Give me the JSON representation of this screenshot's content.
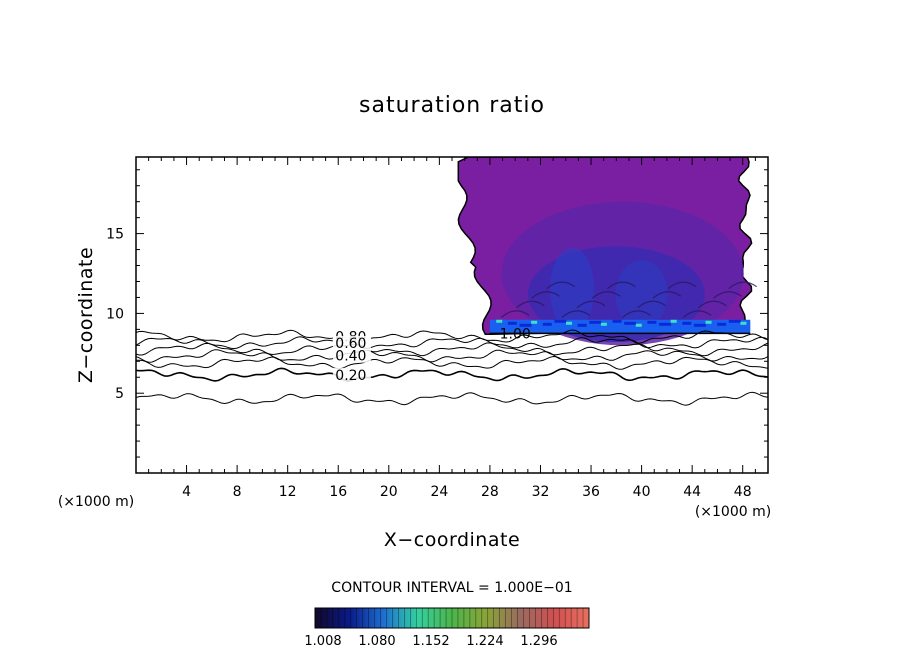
{
  "chart_data": {
    "type": "contour",
    "title": "saturation ratio",
    "xlabel": "X−coordinate",
    "ylabel": "Z−coordinate",
    "x_unit_label": "(×1000 m)",
    "x_unit_label_right": "(×1000 m)",
    "xlim": [
      0,
      50
    ],
    "ylim": [
      0,
      19.8
    ],
    "x_ticks": [
      "4",
      "8",
      "12",
      "16",
      "20",
      "24",
      "28",
      "32",
      "36",
      "40",
      "44",
      "48"
    ],
    "y_ticks": [
      "5",
      "10",
      "15"
    ],
    "contour_interval_text": "CONTOUR INTERVAL = 1.000E−01",
    "contour_labels": [
      {
        "text": "0.80",
        "x": 17.0,
        "z": 8.55
      },
      {
        "text": "0.60",
        "x": 17.0,
        "z": 8.15
      },
      {
        "text": "0.40",
        "x": 17.0,
        "z": 7.35
      },
      {
        "text": "0.20",
        "x": 17.0,
        "z": 6.15
      },
      {
        "text": "1.00",
        "x": 30.0,
        "z": 8.75
      }
    ],
    "contour_levels": [
      {
        "base_z": 4.65,
        "dashed": false
      },
      {
        "base_z": 6.15,
        "dashed": false
      },
      {
        "base_z": 6.9,
        "dashed": false
      },
      {
        "base_z": 7.35,
        "dashed": false
      },
      {
        "base_z": 7.75,
        "dashed": false
      },
      {
        "base_z": 8.15,
        "dashed": false
      },
      {
        "base_z": 8.55,
        "dashed": false
      }
    ],
    "colorbar": {
      "ticks": [
        "1.008",
        "1.080",
        "1.152",
        "1.224",
        "1.296"
      ],
      "colors": [
        "#12082a",
        "#0a1a88",
        "#1e6fd0",
        "#33d0a0",
        "#4cb54a",
        "#8aa438",
        "#9a6a60",
        "#d05050",
        "#e87060"
      ]
    },
    "supersaturated_region": {
      "x_range": [
        28,
        48.5
      ],
      "z_range": [
        8.7,
        19.8
      ],
      "colors": {
        "outer": "#7b1fa2",
        "mid": "#5e24a8",
        "inner": "#3d2ab0",
        "core": "#2840c8",
        "base": "#1a60f0",
        "hot": "#3ee0c8"
      }
    }
  }
}
